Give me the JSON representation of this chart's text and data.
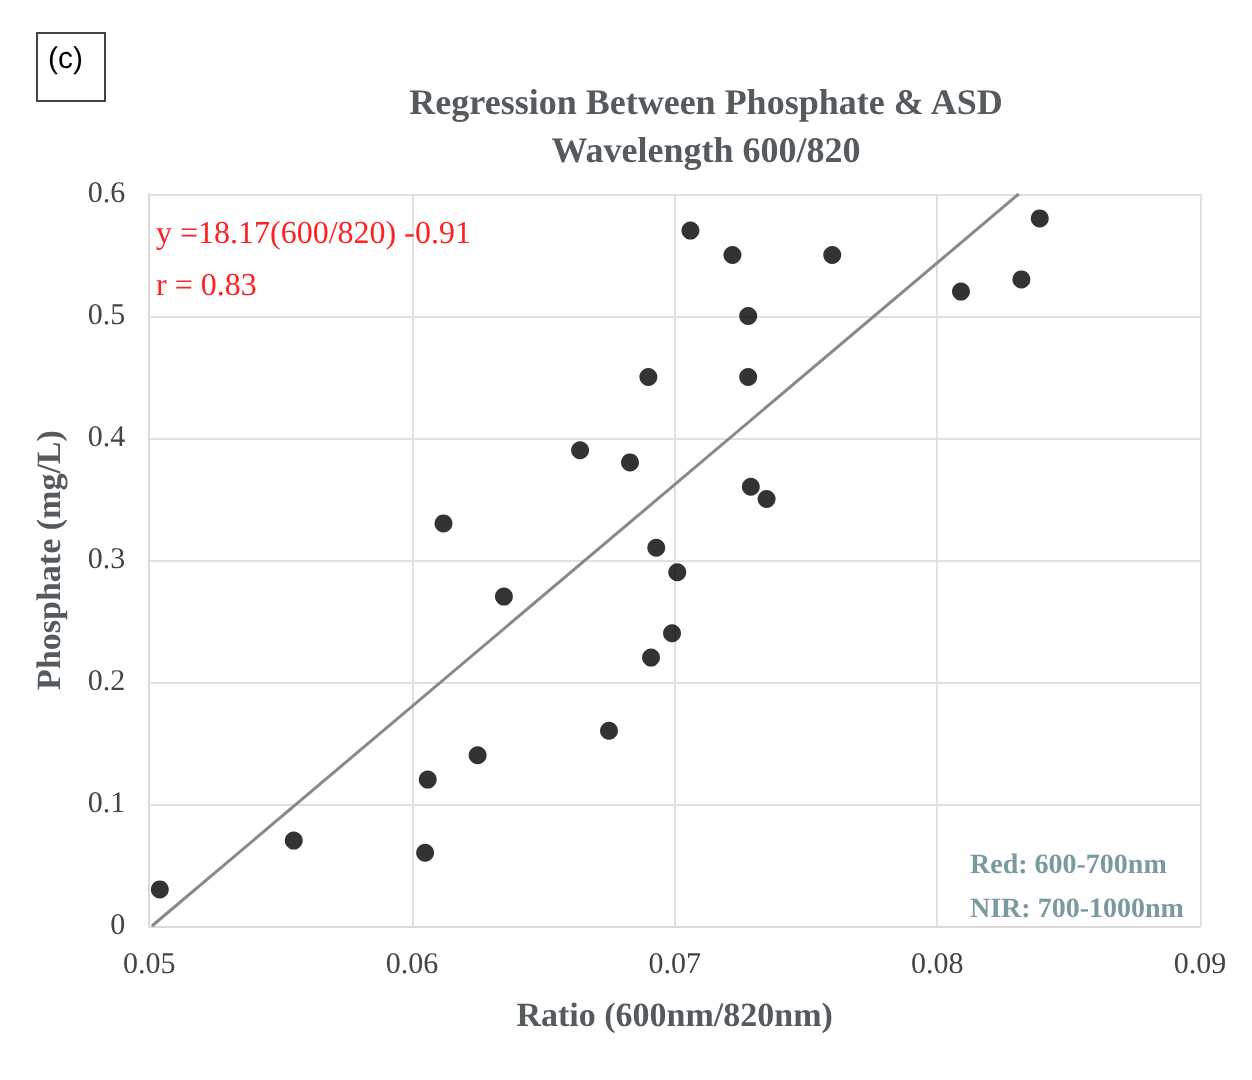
{
  "chart_data": {
    "type": "scatter",
    "title": "Regression Between Phosphate & ASD\nWavelength 600/820",
    "xlabel": "Ratio (600nm/820nm)",
    "ylabel": "Phosphate (mg/L)",
    "xlim": [
      0.05,
      0.09
    ],
    "xticks": [
      0.05,
      0.06,
      0.07,
      0.08,
      0.09
    ],
    "ylim": [
      0,
      0.6
    ],
    "yticks": [
      0,
      0.1,
      0.2,
      0.3,
      0.4,
      0.5,
      0.6
    ],
    "grid": true,
    "marker": "circle",
    "series": [
      {
        "color": "#000000",
        "x": [
          0.0504,
          0.0555,
          0.0605,
          0.0606,
          0.0612,
          0.0625,
          0.0635,
          0.0664,
          0.0675,
          0.0683,
          0.069,
          0.0691,
          0.0693,
          0.0699,
          0.0701,
          0.0706,
          0.0722,
          0.0728,
          0.0728,
          0.0729,
          0.0735,
          0.076,
          0.0809,
          0.0832,
          0.0839
        ],
        "values": [
          0.03,
          0.07,
          0.06,
          0.12,
          0.33,
          0.14,
          0.27,
          0.39,
          0.16,
          0.38,
          0.45,
          0.22,
          0.31,
          0.24,
          0.29,
          0.57,
          0.55,
          0.5,
          0.45,
          0.36,
          0.35,
          0.55,
          0.52,
          0.53,
          0.58
        ]
      },
      {
        "type": "line",
        "color": "#888888",
        "marker": "none",
        "x": [
          0.0501,
          0.0831
        ],
        "values": [
          0,
          0.6
        ]
      }
    ],
    "annotations": [
      "(c)",
      "y =18.17(600/820) -0.91",
      "r = 0.83",
      "Red: 600-700nm",
      "NIR: 700-1000nm"
    ]
  }
}
